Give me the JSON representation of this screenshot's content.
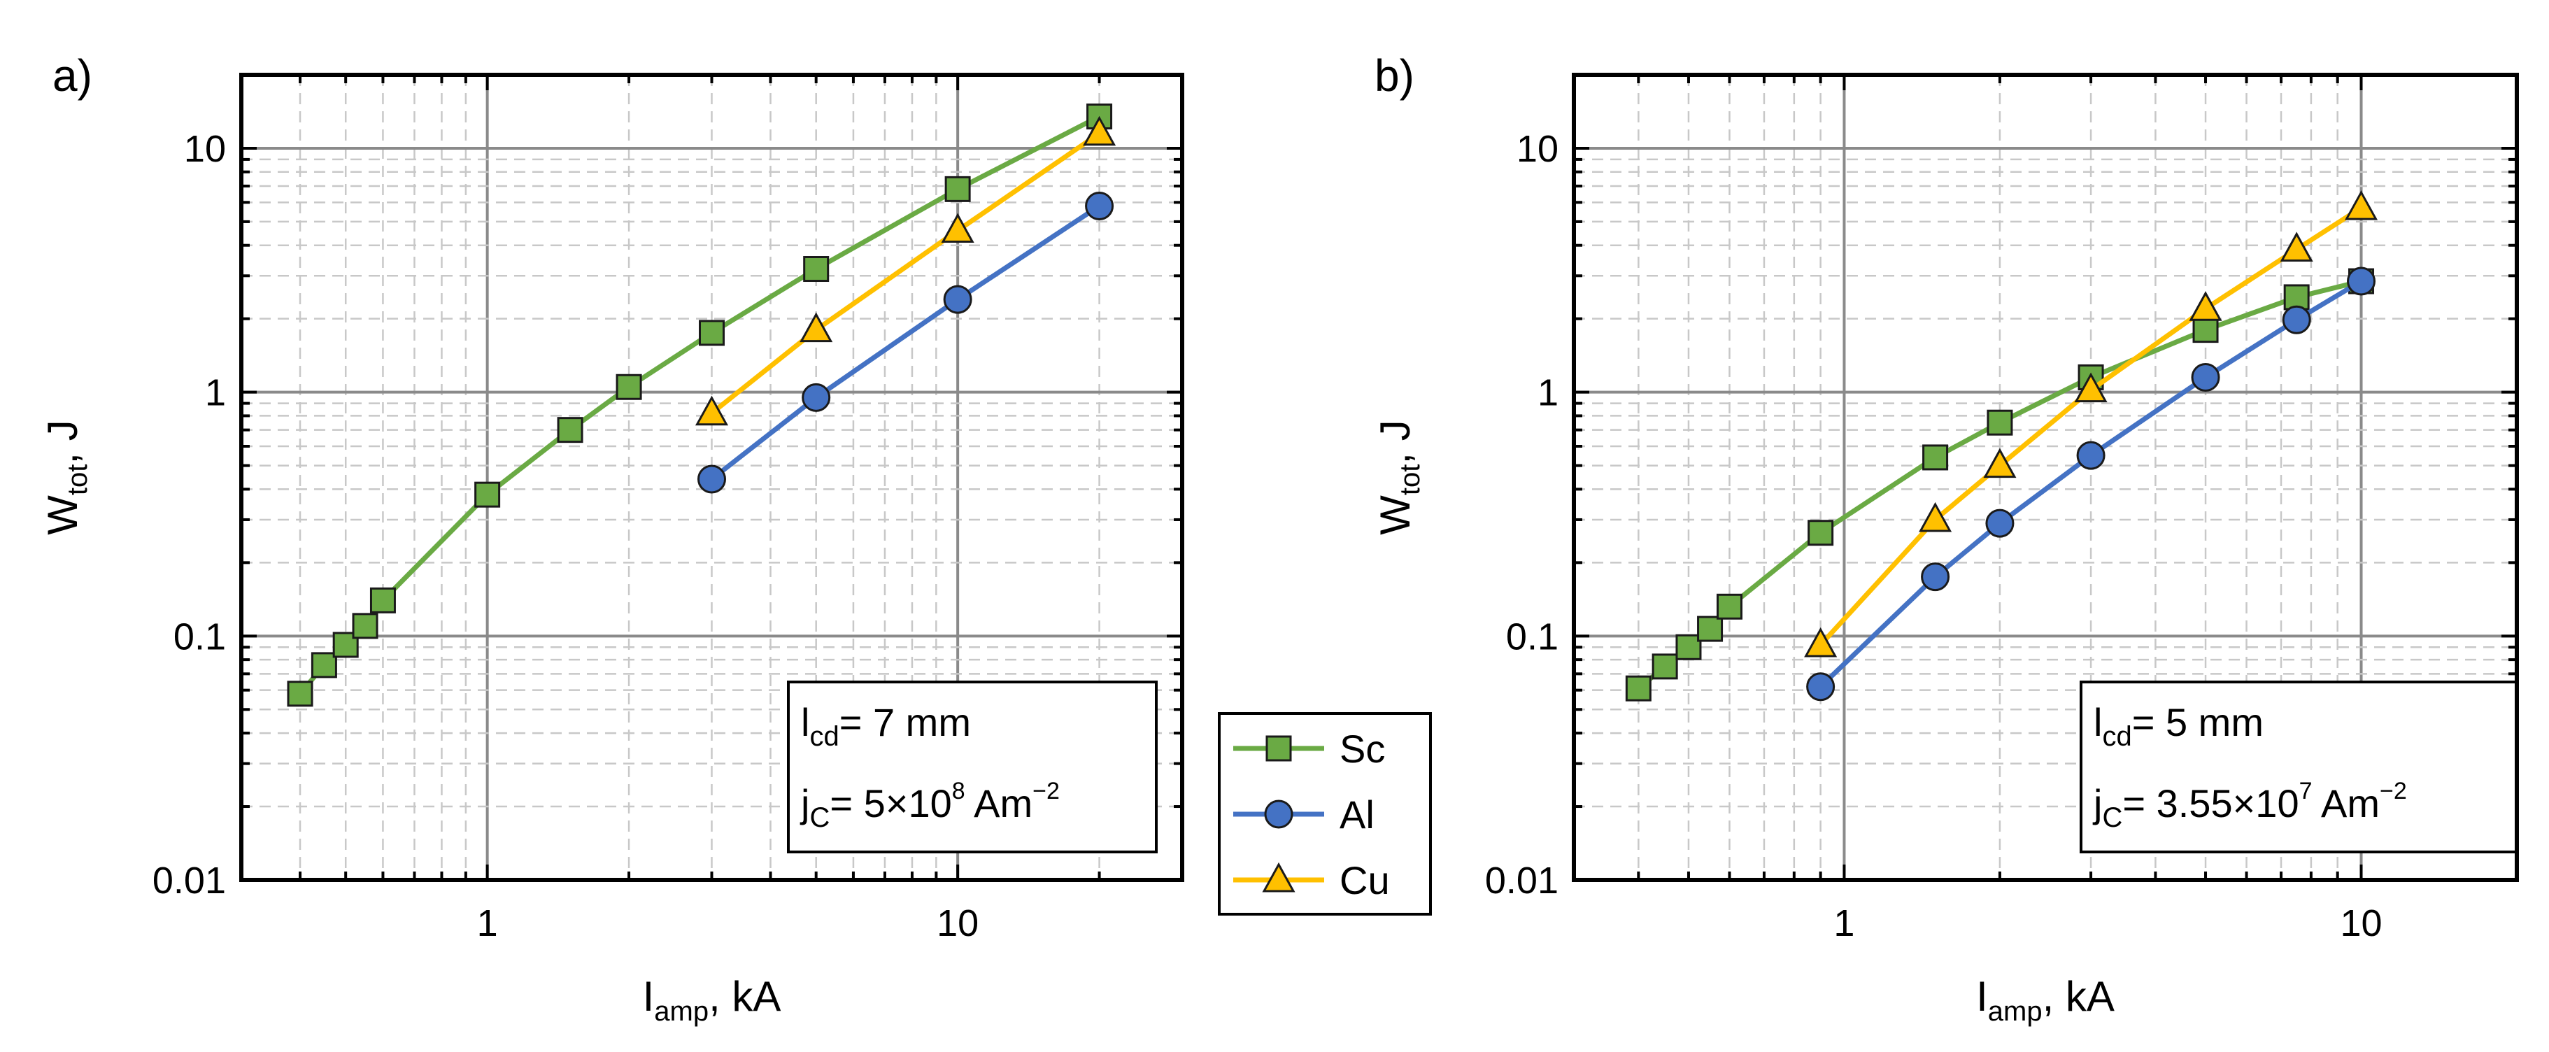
{
  "chart_data": [
    {
      "id": "a",
      "type": "line",
      "panel_label": "a)",
      "scale": "log-log",
      "xlabel": {
        "main": "I",
        "sub": "amp",
        "rest": ", kA"
      },
      "ylabel": {
        "main": "W",
        "sub": "tot",
        "rest": ", J"
      },
      "xlim": [
        0.3,
        30
      ],
      "ylim": [
        0.01,
        20
      ],
      "xticks": [
        {
          "value": 1,
          "label": "1"
        },
        {
          "value": 10,
          "label": "10"
        }
      ],
      "yticks": [
        {
          "value": 0.01,
          "label": "0.01"
        },
        {
          "value": 0.1,
          "label": "0.1"
        },
        {
          "value": 1,
          "label": "1"
        },
        {
          "value": 10,
          "label": "10"
        }
      ],
      "grid": true,
      "annotation": {
        "line1": {
          "main": "l",
          "sub": "cd",
          "rest": "= 7 mm"
        },
        "line2": {
          "main": "j",
          "sub": "C",
          "rest": "= 5×10",
          "sup": "8",
          "tail": " Am",
          "sup2": "−2"
        }
      },
      "series": [
        {
          "name": "Sc",
          "color": "#6aaa44",
          "marker": "square",
          "x": [
            0.4,
            0.45,
            0.5,
            0.55,
            0.6,
            1,
            1.5,
            2,
            3,
            5,
            10,
            20
          ],
          "y": [
            0.058,
            0.076,
            0.092,
            0.11,
            0.14,
            0.38,
            0.7,
            1.05,
            1.75,
            3.2,
            6.8,
            13.5
          ]
        },
        {
          "name": "Al",
          "color": "#4472c4",
          "marker": "circle",
          "x": [
            3,
            5,
            10,
            20
          ],
          "y": [
            0.44,
            0.95,
            2.4,
            5.8
          ]
        },
        {
          "name": "Cu",
          "color": "#ffc000",
          "marker": "triangle",
          "x": [
            3,
            5,
            10,
            20
          ],
          "y": [
            0.82,
            1.8,
            4.6,
            11.5
          ]
        }
      ]
    },
    {
      "id": "b",
      "type": "line",
      "panel_label": "b)",
      "scale": "log-log",
      "xlabel": {
        "main": "I",
        "sub": "amp",
        "rest": ", kA"
      },
      "ylabel": {
        "main": "W",
        "sub": "tot",
        "rest": ", J"
      },
      "xlim": [
        0.3,
        20
      ],
      "ylim": [
        0.01,
        20
      ],
      "xticks": [
        {
          "value": 1,
          "label": "1"
        },
        {
          "value": 10,
          "label": "10"
        }
      ],
      "yticks": [
        {
          "value": 0.01,
          "label": "0.01"
        },
        {
          "value": 0.1,
          "label": "0.1"
        },
        {
          "value": 1,
          "label": "1"
        },
        {
          "value": 10,
          "label": "10"
        }
      ],
      "grid": true,
      "annotation": {
        "line1": {
          "main": "l",
          "sub": "cd",
          "rest": "= 5 mm"
        },
        "line2": {
          "main": "j",
          "sub": "C",
          "rest": "= 3.55×10",
          "sup": "7",
          "tail": " Am",
          "sup2": "−2"
        }
      },
      "series": [
        {
          "name": "Sc",
          "color": "#6aaa44",
          "marker": "square",
          "x": [
            0.4,
            0.45,
            0.5,
            0.55,
            0.6,
            0.9,
            1.5,
            2,
            3,
            5,
            7.5,
            10
          ],
          "y": [
            0.061,
            0.075,
            0.09,
            0.107,
            0.132,
            0.265,
            0.54,
            0.75,
            1.15,
            1.8,
            2.45,
            2.85
          ]
        },
        {
          "name": "Al",
          "color": "#4472c4",
          "marker": "circle",
          "x": [
            0.9,
            1.5,
            2,
            3,
            5,
            7.5,
            10
          ],
          "y": [
            0.062,
            0.175,
            0.29,
            0.55,
            1.15,
            1.98,
            2.85
          ]
        },
        {
          "name": "Cu",
          "color": "#ffc000",
          "marker": "triangle",
          "x": [
            0.9,
            1.5,
            2,
            3,
            5,
            7.5,
            10
          ],
          "y": [
            0.092,
            0.3,
            0.5,
            1.02,
            2.2,
            3.85,
            5.7
          ]
        }
      ]
    }
  ],
  "legend": {
    "placement": "between panels",
    "entries": [
      {
        "name": "Sc",
        "color": "#6aaa44",
        "marker": "square"
      },
      {
        "name": "Al",
        "color": "#4472c4",
        "marker": "circle"
      },
      {
        "name": "Cu",
        "color": "#ffc000",
        "marker": "triangle"
      }
    ]
  }
}
